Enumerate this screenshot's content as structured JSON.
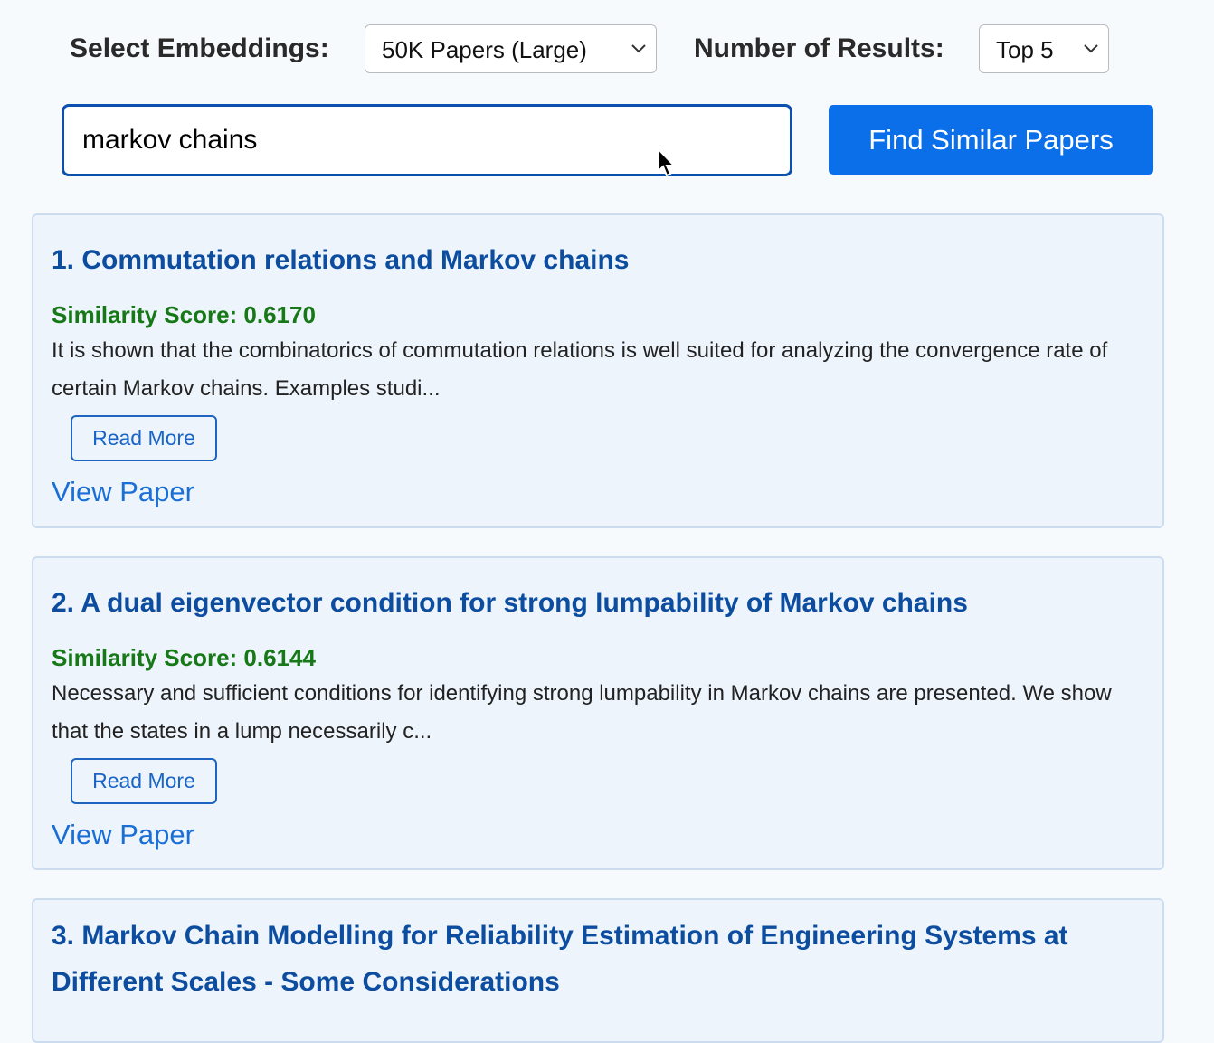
{
  "controls": {
    "embeddings_label": "Select Embeddings:",
    "embeddings_value": "50K Papers (Large)",
    "results_label": "Number of Results:",
    "results_value": "Top 5"
  },
  "search": {
    "query": "markov chains",
    "button_label": "Find Similar Papers"
  },
  "colors": {
    "accent": "#0b6fe9",
    "title": "#0c4d9f",
    "score": "#167816",
    "card_bg": "#edf4fb"
  },
  "results": [
    {
      "title": "1. Commutation relations and Markov chains",
      "score": "Similarity Score: 0.6170",
      "abstract": "It is shown that the combinatorics of commutation relations is well suited for analyzing the convergence rate of certain Markov chains. Examples studi...",
      "read_more": "Read More",
      "view_paper": "View Paper"
    },
    {
      "title": "2. A dual eigenvector condition for strong lumpability of Markov chains",
      "score": "Similarity Score: 0.6144",
      "abstract": "Necessary and sufficient conditions for identifying strong lumpability in Markov chains are presented. We show that the states in a lump necessarily c...",
      "read_more": "Read More",
      "view_paper": "View Paper"
    },
    {
      "title": "3. Markov Chain Modelling for Reliability Estimation of Engineering Systems at Different Scales - Some Considerations"
    }
  ]
}
